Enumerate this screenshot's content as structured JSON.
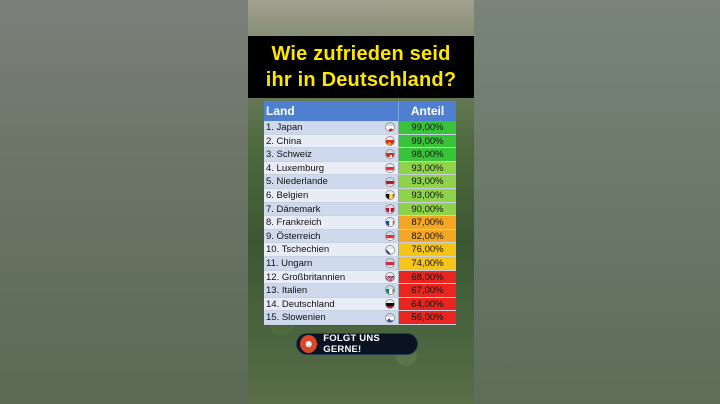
{
  "title": {
    "line1": "Wie zufrieden seid",
    "line2": "ihr in Deutschland?"
  },
  "table": {
    "header": {
      "land": "Land",
      "anteil": "Anteil"
    },
    "rows": [
      {
        "land": "1. Japan",
        "anteil": "99,00%",
        "color": "#38c438",
        "flag": "japan-flag-icon"
      },
      {
        "land": "2. China",
        "anteil": "99,00%",
        "color": "#38c438",
        "flag": "china-flag-icon"
      },
      {
        "land": "3. Schweiz",
        "anteil": "98,00%",
        "color": "#38c438",
        "flag": "switzerland-flag-icon"
      },
      {
        "land": "4. Luxemburg",
        "anteil": "93,00%",
        "color": "#8fd34a",
        "flag": "luxembourg-flag-icon"
      },
      {
        "land": "5. Niederlande",
        "anteil": "93,00%",
        "color": "#8fd34a",
        "flag": "netherlands-flag-icon"
      },
      {
        "land": "6. Belgien",
        "anteil": "93,00%",
        "color": "#8fd34a",
        "flag": "belgium-flag-icon"
      },
      {
        "land": "7. Dänemark",
        "anteil": "90,00%",
        "color": "#8fd34a",
        "flag": "denmark-flag-icon"
      },
      {
        "land": "8. Frankreich",
        "anteil": "87,00%",
        "color": "#f5a623",
        "flag": "france-flag-icon"
      },
      {
        "land": "9. Österreich",
        "anteil": "82,00%",
        "color": "#f5a623",
        "flag": "austria-flag-icon"
      },
      {
        "land": "10. Tschechien",
        "anteil": "76,00%",
        "color": "#f5c518",
        "flag": "czech-flag-icon"
      },
      {
        "land": "11. Ungarn",
        "anteil": "74,00%",
        "color": "#f5c518",
        "flag": "hungary-flag-icon"
      },
      {
        "land": "12. Großbritannien",
        "anteil": "68,00%",
        "color": "#e8251f",
        "flag": "uk-flag-icon"
      },
      {
        "land": "13. Italien",
        "anteil": "67,00%",
        "color": "#e8251f",
        "flag": "italy-flag-icon"
      },
      {
        "land": "14. Deutschland",
        "anteil": "64,00%",
        "color": "#e8251f",
        "flag": "germany-flag-icon"
      },
      {
        "land": "15. Slowenien",
        "anteil": "56,00%",
        "color": "#e8251f",
        "flag": "slovenia-flag-icon"
      }
    ]
  },
  "badge": {
    "label": "FOLGT UNS GERNE!",
    "icon": "mascot-icon"
  }
}
